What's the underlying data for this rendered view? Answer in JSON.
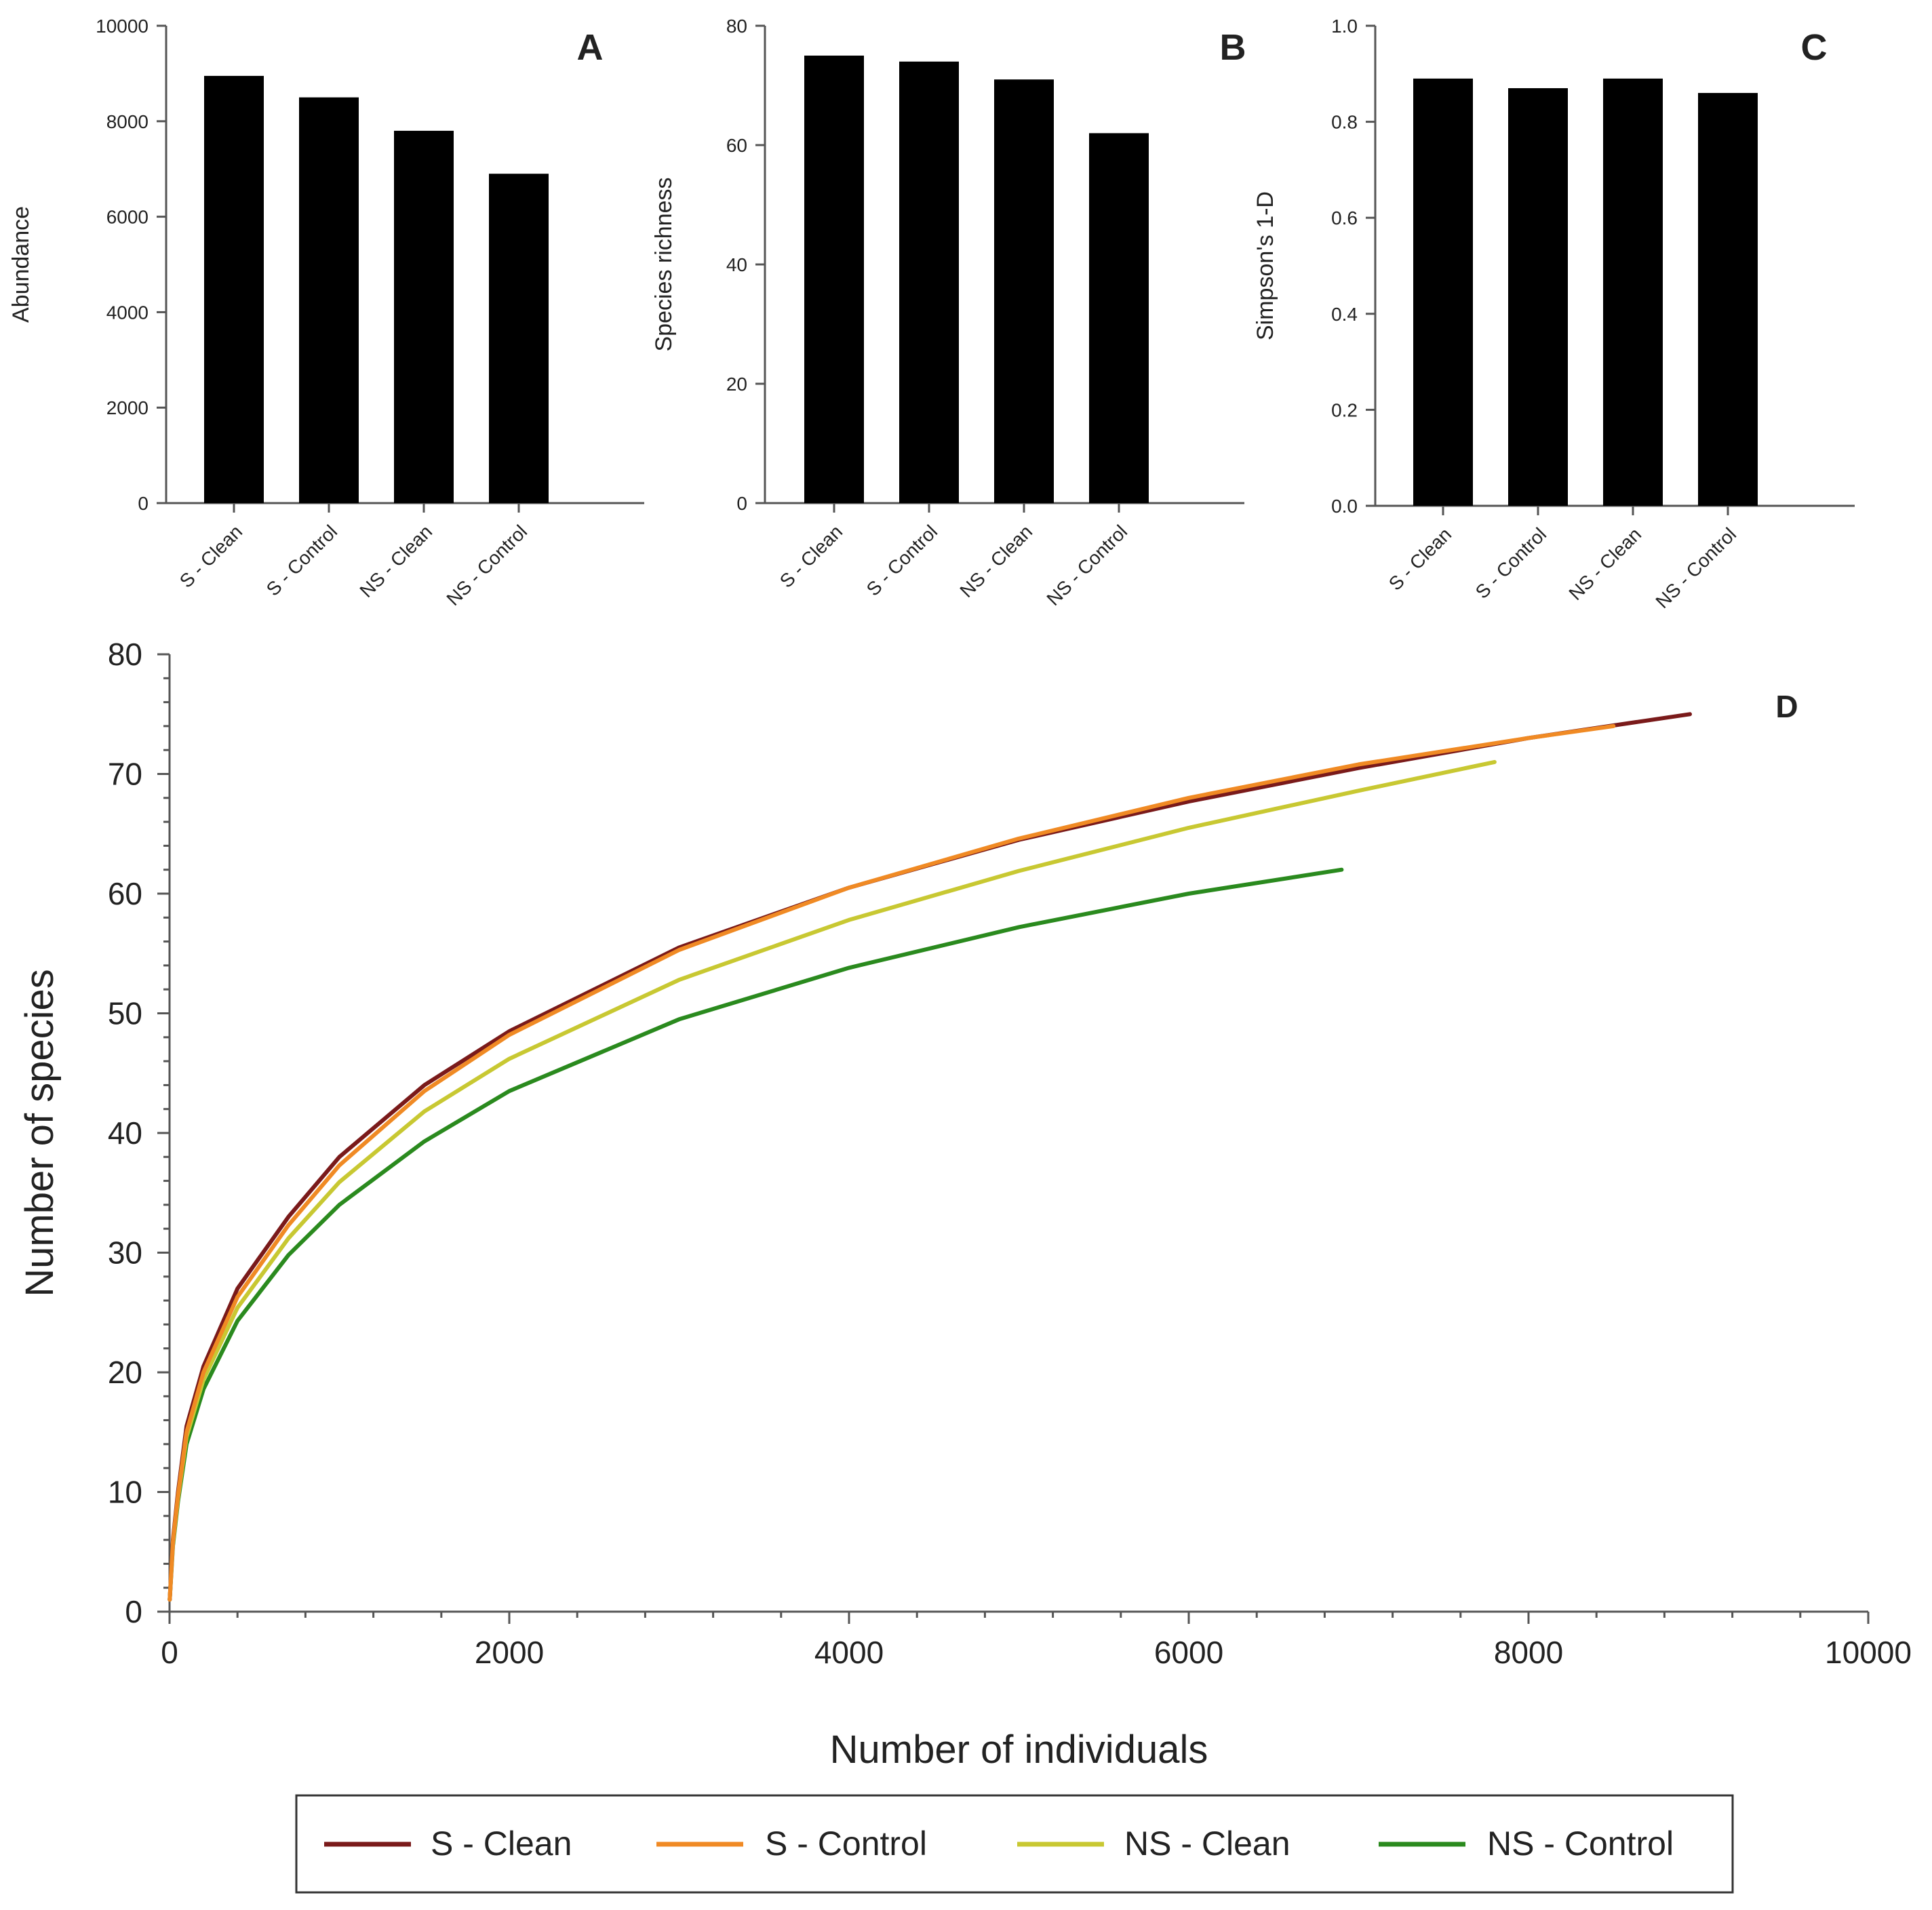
{
  "chart_data": [
    {
      "type": "bar",
      "panel_label": "A",
      "title": "",
      "xlabel": "",
      "ylabel": "Abundance",
      "categories": [
        "S - Clean",
        "S - Control",
        "NS - Clean",
        "NS - Control"
      ],
      "values": [
        8950,
        8500,
        7800,
        6900
      ],
      "ylim": [
        0,
        10000
      ],
      "yticks": [
        0,
        2000,
        4000,
        6000,
        8000,
        10000
      ],
      "ytick_labels": [
        "0",
        "2000",
        "4000",
        "6000",
        "8000",
        "10000"
      ],
      "bar_color": "#000000",
      "grid": false
    },
    {
      "type": "bar",
      "panel_label": "B",
      "title": "",
      "xlabel": "",
      "ylabel": "Species richness",
      "categories": [
        "S - Clean",
        "S - Control",
        "NS - Clean",
        "NS - Control"
      ],
      "values": [
        75,
        74,
        71,
        62
      ],
      "ylim": [
        0,
        80
      ],
      "yticks": [
        0,
        20,
        40,
        60,
        80
      ],
      "ytick_labels": [
        "0",
        "20",
        "40",
        "60",
        "80"
      ],
      "bar_color": "#000000",
      "grid": false
    },
    {
      "type": "bar",
      "panel_label": "C",
      "title": "",
      "xlabel": "",
      "ylabel": "Simpson's 1-D",
      "categories": [
        "S - Clean",
        "S - Control",
        "NS - Clean",
        "NS - Control"
      ],
      "values": [
        0.89,
        0.87,
        0.89,
        0.86
      ],
      "ylim": [
        0,
        1.0
      ],
      "yticks": [
        0,
        0.2,
        0.4,
        0.6,
        0.8,
        1.0
      ],
      "ytick_labels": [
        "0.0",
        "0.2",
        "0.4",
        "0.6",
        "0.8",
        "1.0"
      ],
      "bar_color": "#000000",
      "grid": false
    },
    {
      "type": "line",
      "panel_label": "D",
      "title": "",
      "xlabel": "Number of individuals",
      "ylabel": "Number of species",
      "xlim": [
        0,
        10000
      ],
      "ylim": [
        0,
        80
      ],
      "xticks": [
        0,
        2000,
        4000,
        6000,
        8000,
        10000
      ],
      "xtick_labels": [
        "0",
        "2000",
        "4000",
        "6000",
        "8000",
        "10000"
      ],
      "yticks": [
        0,
        10,
        20,
        30,
        40,
        50,
        60,
        70,
        80
      ],
      "ytick_labels": [
        "0",
        "10",
        "20",
        "30",
        "40",
        "50",
        "60",
        "70",
        "80"
      ],
      "grid": false,
      "legend_position": "bottom",
      "series": [
        {
          "name": "S - Clean",
          "color": "#7a1a1a",
          "x": [
            1,
            20,
            50,
            100,
            200,
            400,
            700,
            1000,
            1500,
            2000,
            3000,
            4000,
            5000,
            6000,
            7000,
            8000,
            8950
          ],
          "y": [
            1,
            6,
            10,
            15.5,
            20.5,
            27,
            33,
            38,
            44,
            48.5,
            55.5,
            60.5,
            64.5,
            67.7,
            70.5,
            73,
            75
          ]
        },
        {
          "name": "S - Control",
          "color": "#f08a24",
          "x": [
            1,
            20,
            50,
            100,
            200,
            400,
            700,
            1000,
            1500,
            2000,
            3000,
            4000,
            5000,
            6000,
            7000,
            8000,
            8500
          ],
          "y": [
            1,
            5.8,
            9.7,
            15,
            20,
            26.3,
            32.3,
            37.3,
            43.5,
            48.2,
            55.3,
            60.5,
            64.6,
            68,
            70.8,
            73,
            74
          ]
        },
        {
          "name": "NS - Clean",
          "color": "#c8c832",
          "x": [
            1,
            20,
            50,
            100,
            200,
            400,
            700,
            1000,
            1500,
            2000,
            3000,
            4000,
            5000,
            6000,
            7000,
            7800
          ],
          "y": [
            1,
            5.7,
            9.5,
            14.6,
            19.4,
            25.4,
            31.2,
            35.9,
            41.8,
            46.2,
            52.8,
            57.8,
            61.9,
            65.5,
            68.6,
            71
          ]
        },
        {
          "name": "NS - Control",
          "color": "#2a8a1e",
          "x": [
            1,
            20,
            50,
            100,
            200,
            400,
            700,
            1000,
            1500,
            2000,
            3000,
            4000,
            5000,
            6000,
            6900
          ],
          "y": [
            1,
            5.5,
            9.2,
            14,
            18.6,
            24.3,
            29.8,
            34,
            39.3,
            43.5,
            49.5,
            53.8,
            57.2,
            60,
            62
          ]
        }
      ]
    }
  ]
}
